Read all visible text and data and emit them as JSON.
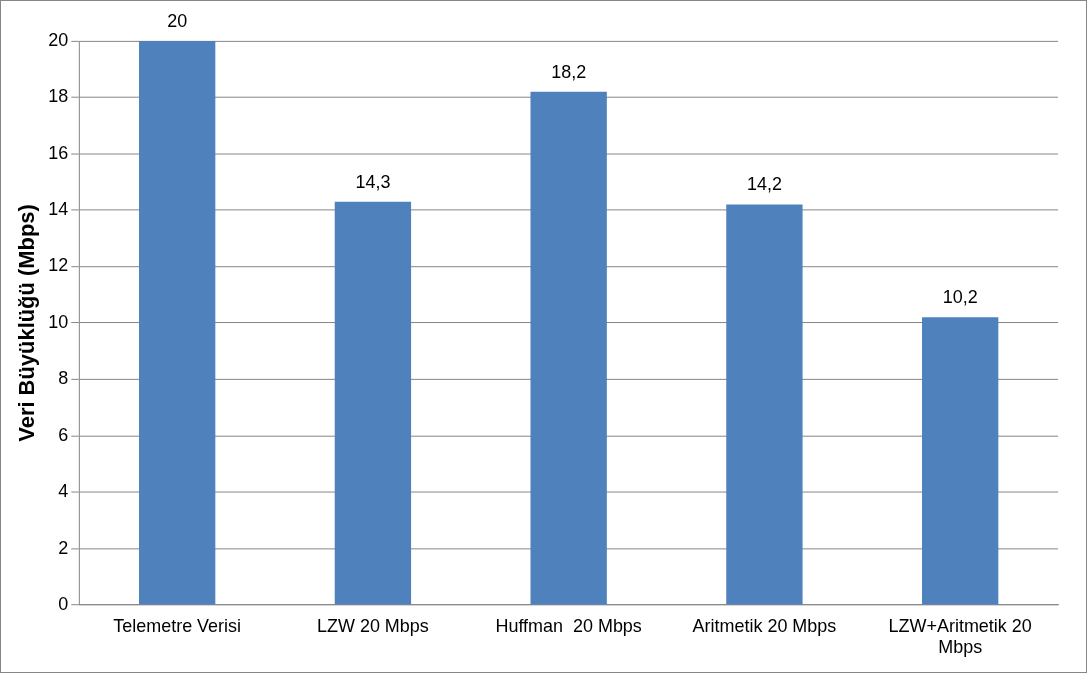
{
  "chart_data": {
    "type": "bar",
    "ylabel": "Veri Büyüklüğü (Mbps)",
    "categories": [
      "Telemetre Verisi",
      "LZW 20 Mbps",
      "Huffman  20 Mbps",
      "Aritmetik 20 Mbps",
      "LZW+Aritmetik 20 Mbps"
    ],
    "values": [
      20,
      14.3,
      18.2,
      14.2,
      10.2
    ],
    "value_labels": [
      "20",
      "14,3",
      "18,2",
      "14,2",
      "10,2"
    ],
    "color": "#4f81bd",
    "ylim": [
      0,
      20
    ],
    "yticks": [
      0,
      2,
      4,
      6,
      8,
      10,
      12,
      14,
      16,
      18,
      20
    ],
    "grid": "y",
    "legend": false
  }
}
